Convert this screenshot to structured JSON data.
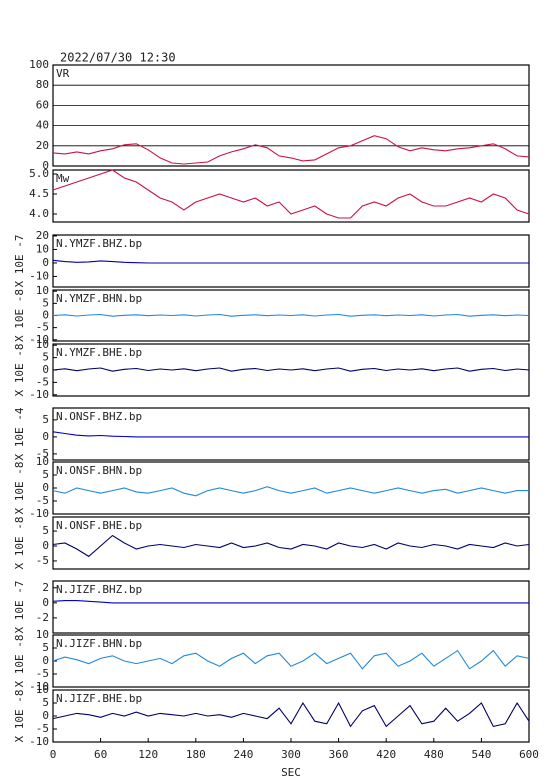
{
  "chart_data": {
    "type": "line",
    "title": "2022/07/30 12:30",
    "xlabel": "SEC",
    "xlim": [
      0,
      600
    ],
    "xticks": [
      0,
      60,
      120,
      180,
      240,
      300,
      360,
      420,
      480,
      540,
      600
    ],
    "x": [
      0,
      15,
      30,
      45,
      60,
      75,
      90,
      105,
      120,
      135,
      150,
      165,
      180,
      195,
      210,
      225,
      240,
      255,
      270,
      285,
      300,
      315,
      330,
      345,
      360,
      375,
      390,
      405,
      420,
      435,
      450,
      465,
      480,
      495,
      510,
      525,
      540,
      555,
      570,
      585,
      600
    ],
    "panels": [
      {
        "label": "VR",
        "color": "#cc1144",
        "ylim": [
          0,
          100
        ],
        "yticks": [
          0,
          20,
          40,
          60,
          80,
          100
        ],
        "grid": true,
        "values": [
          13,
          12,
          14,
          12,
          15,
          17,
          21,
          22,
          16,
          8,
          3,
          2,
          3,
          4,
          10,
          14,
          17,
          21,
          18,
          10,
          8,
          5,
          6,
          12,
          18,
          20,
          25,
          30,
          27,
          19,
          15,
          18,
          16,
          15,
          17,
          18,
          20,
          22,
          17,
          10,
          9
        ]
      },
      {
        "label": "Mw",
        "color": "#cc1144",
        "ylim": [
          3.8,
          5.1
        ],
        "yticks": [
          {
            "value": 4.0,
            "label": "4.0"
          },
          {
            "value": 4.5,
            "label": "4.5"
          },
          {
            "value": 5.0,
            "label": "5.0"
          }
        ],
        "grid": false,
        "values": [
          4.6,
          4.7,
          4.8,
          4.9,
          5.0,
          5.1,
          4.9,
          4.8,
          4.6,
          4.4,
          4.3,
          4.1,
          4.3,
          4.4,
          4.5,
          4.4,
          4.3,
          4.4,
          4.2,
          4.3,
          4.0,
          4.1,
          4.2,
          4.0,
          3.9,
          3.9,
          4.2,
          4.3,
          4.2,
          4.4,
          4.5,
          4.3,
          4.2,
          4.2,
          4.3,
          4.4,
          4.3,
          4.5,
          4.4,
          4.1,
          4.0
        ]
      },
      {
        "label": "N.YMZF.BHZ.bp",
        "ylabel": "X 10E -7",
        "color": "#0000aa",
        "ylim": [
          -17.8,
          20.7
        ],
        "yticks": [
          -10,
          0,
          10,
          20
        ],
        "grid": false,
        "values": [
          2,
          1,
          0.5,
          0.8,
          1.5,
          1,
          0.5,
          0.2,
          0,
          0,
          0,
          0,
          0,
          0,
          0,
          0,
          0,
          0,
          0,
          0,
          0,
          0,
          0,
          0,
          0,
          0,
          0,
          0,
          0,
          0,
          0,
          0,
          0,
          0,
          0,
          0,
          0,
          0,
          0,
          0,
          0
        ]
      },
      {
        "label": "N.YMZF.BHN.bp",
        "ylabel": "X 10E -8",
        "color": "#2288dd",
        "ylim": [
          -10.5,
          10.5
        ],
        "yticks": [
          -10,
          -5,
          0,
          5,
          10
        ],
        "grid": false,
        "values": [
          0,
          0.3,
          -0.2,
          0.2,
          0.4,
          -0.3,
          0.1,
          0.3,
          -0.1,
          0.2,
          0,
          0.3,
          -0.2,
          0.2,
          0.4,
          -0.3,
          0.1,
          0.3,
          -0.1,
          0.2,
          0,
          0.3,
          -0.2,
          0.2,
          0.4,
          -0.3,
          0.1,
          0.3,
          -0.1,
          0.2,
          0,
          0.3,
          -0.2,
          0.2,
          0.4,
          -0.3,
          0.1,
          0.3,
          -0.1,
          0.2,
          0
        ]
      },
      {
        "label": "N.YMZF.BHE.bp",
        "ylabel": "X 10E -8",
        "color": "#000066",
        "ylim": [
          -10.5,
          10.5
        ],
        "yticks": [
          -10,
          -5,
          0,
          5,
          10
        ],
        "grid": false,
        "values": [
          0,
          0.5,
          -0.3,
          0.4,
          0.8,
          -0.5,
          0.3,
          0.6,
          -0.2,
          0.4,
          0,
          0.5,
          -0.3,
          0.4,
          0.8,
          -0.5,
          0.3,
          0.6,
          -0.2,
          0.4,
          0,
          0.5,
          -0.3,
          0.4,
          0.8,
          -0.5,
          0.3,
          0.6,
          -0.2,
          0.4,
          0,
          0.5,
          -0.3,
          0.4,
          0.8,
          -0.5,
          0.3,
          0.6,
          -0.2,
          0.4,
          0
        ]
      },
      {
        "label": "N.ONSF.BHZ.bp",
        "ylabel": "X 10E -4",
        "color": "#0000cc",
        "ylim": [
          -6.8,
          8.5
        ],
        "yticks": [
          -5,
          0,
          5
        ],
        "grid": false,
        "values": [
          1.5,
          1,
          0.5,
          0.3,
          0.4,
          0.2,
          0.1,
          0,
          0,
          0,
          0,
          0,
          0,
          0,
          0,
          0,
          0,
          0,
          0,
          0,
          0,
          0,
          0,
          0,
          0,
          0,
          0,
          0,
          0,
          0,
          0,
          0,
          0,
          0,
          0,
          0,
          0,
          0,
          0,
          0,
          0
        ]
      },
      {
        "label": "N.ONSF.BHN.bp",
        "ylabel": "X 10E -8",
        "color": "#2288dd",
        "ylim": [
          -10,
          10
        ],
        "yticks": [
          -10,
          -5,
          0,
          5,
          10
        ],
        "grid": false,
        "values": [
          -1,
          -2,
          0,
          -1,
          -2,
          -1,
          0,
          -1.5,
          -2,
          -1,
          0,
          -2,
          -3,
          -1,
          0,
          -1,
          -2,
          -1,
          0.5,
          -1,
          -2,
          -1,
          0,
          -2,
          -1,
          0,
          -1,
          -2,
          -1,
          0,
          -1,
          -2,
          -1,
          -0.5,
          -2,
          -1,
          0,
          -1,
          -2,
          -1,
          -1
        ]
      },
      {
        "label": "N.ONSF.BHE.bp",
        "ylabel": "X 10E -8",
        "color": "#000066",
        "ylim": [
          -7.7,
          9.7
        ],
        "yticks": [
          -5,
          0,
          5
        ],
        "grid": false,
        "values": [
          0.5,
          1,
          -1,
          -3.5,
          0,
          3.5,
          1,
          -1,
          0,
          0.5,
          0,
          -0.5,
          0.5,
          0,
          -0.5,
          1,
          -0.5,
          0,
          1,
          -0.5,
          -1,
          0.5,
          0,
          -1,
          1,
          0,
          -0.5,
          0.5,
          -1,
          1,
          0,
          -0.5,
          0.5,
          0,
          -1,
          0.5,
          0,
          -0.5,
          1,
          0,
          0.5
        ]
      },
      {
        "label": "N.JIZF.BHZ.bp",
        "ylabel": "X 10E -7",
        "color": "#0000cc",
        "ylim": [
          -4,
          2.9
        ],
        "yticks": [
          -2,
          0,
          2
        ],
        "grid": false,
        "values": [
          0.2,
          0.3,
          0.3,
          0.2,
          0.1,
          0,
          0,
          0,
          0,
          0,
          0,
          0,
          0,
          0,
          0,
          0,
          0,
          0,
          0,
          0,
          0,
          0,
          0,
          0,
          0,
          0,
          0,
          0,
          0,
          0,
          0,
          0,
          0,
          0,
          0,
          0,
          0,
          0,
          0,
          0,
          0
        ]
      },
      {
        "label": "N.JIZF.BHN.bp",
        "ylabel": "X 10E -8",
        "color": "#2288dd",
        "ylim": [
          -10,
          10
        ],
        "yticks": [
          -10,
          -5,
          0,
          5,
          10
        ],
        "grid": false,
        "values": [
          0,
          1.5,
          0.5,
          -1,
          1,
          2,
          0,
          -1,
          0,
          1,
          -1,
          2,
          3,
          0,
          -2,
          1,
          3,
          -1,
          2,
          3,
          -2,
          0,
          3,
          -1,
          1,
          3,
          -3,
          2,
          3,
          -2,
          0,
          3,
          -2,
          1,
          4,
          -3,
          0,
          4,
          -2,
          2,
          1
        ]
      },
      {
        "label": "N.JIZF.BHE.bp",
        "ylabel": "X 10E -8",
        "color": "#000066",
        "ylim": [
          -10,
          10
        ],
        "yticks": [
          -10,
          -5,
          0,
          5,
          10
        ],
        "grid": false,
        "values": [
          -1,
          0,
          1,
          0.5,
          -0.5,
          1,
          0,
          1.5,
          0,
          1,
          0.5,
          0,
          1,
          0,
          0.5,
          -0.5,
          1,
          0,
          -1,
          3,
          -3,
          5,
          -2,
          -3,
          5,
          -4,
          2,
          4,
          -4,
          0,
          4,
          -3,
          -2,
          3,
          -2,
          1,
          5,
          -4,
          -3,
          5,
          -2
        ]
      }
    ]
  }
}
